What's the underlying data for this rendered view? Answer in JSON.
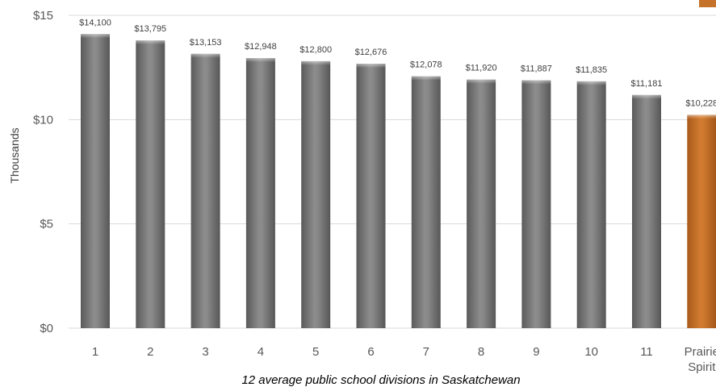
{
  "chart_data": {
    "type": "bar",
    "categories": [
      "1",
      "2",
      "3",
      "4",
      "5",
      "6",
      "7",
      "8",
      "9",
      "10",
      "11",
      "Prairie Spirit"
    ],
    "values": [
      14100,
      13795,
      13153,
      12948,
      12800,
      12676,
      12078,
      11920,
      11887,
      11835,
      11181,
      10228
    ],
    "data_labels": [
      "$14,100",
      "$13,795",
      "$13,153",
      "$12,948",
      "$12,800",
      "$12,676",
      "$12,078",
      "$11,920",
      "$11,887",
      "$11,835",
      "$11,181",
      "$10,228"
    ],
    "ylim": [
      0,
      15000
    ],
    "yticks": [
      0,
      5000,
      10000,
      15000
    ],
    "ytick_labels": [
      "$0",
      "$5",
      "$10",
      "$15"
    ],
    "ylabel": "Thousands",
    "xlabel": "12 average public school divisions in Saskatchewan",
    "grid": true,
    "colors": {
      "default_bar": "#7f7f7f",
      "highlight_bar": "#c5722b",
      "gridline": "#d9d9d9"
    },
    "highlight_index": 11
  }
}
